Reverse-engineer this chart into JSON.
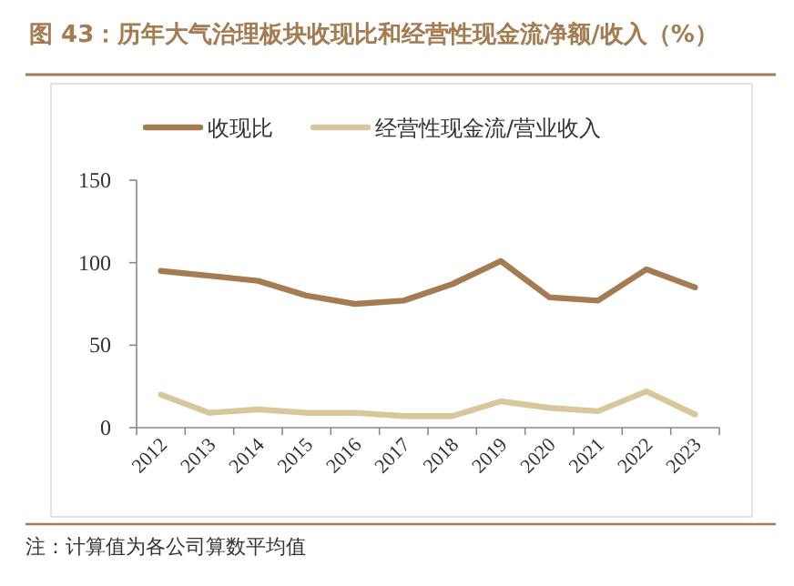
{
  "chart_data": {
    "type": "line",
    "title": "图 43：历年大气治理板块收现比和经营性现金流净额/收入（%）",
    "categories": [
      "2012",
      "2013",
      "2014",
      "2015",
      "2016",
      "2017",
      "2018",
      "2019",
      "2020",
      "2021",
      "2022",
      "2023"
    ],
    "series": [
      {
        "name": "收现比",
        "color": "#a57b52",
        "values": [
          95,
          92,
          89,
          80,
          75,
          77,
          87,
          101,
          79,
          77,
          96,
          85
        ]
      },
      {
        "name": "经营性现金流/营业收入",
        "color": "#d9c79c",
        "values": [
          20,
          9,
          11,
          9,
          9,
          7,
          7,
          16,
          12,
          10,
          22,
          8
        ]
      }
    ],
    "ylim": [
      0,
      150
    ],
    "yticks": [
      0,
      50,
      100,
      150
    ],
    "grid": false,
    "legend": "top",
    "marker": "none",
    "line_style": "solid",
    "annotations": [
      "注：计算值为各公司算数平均值"
    ]
  }
}
